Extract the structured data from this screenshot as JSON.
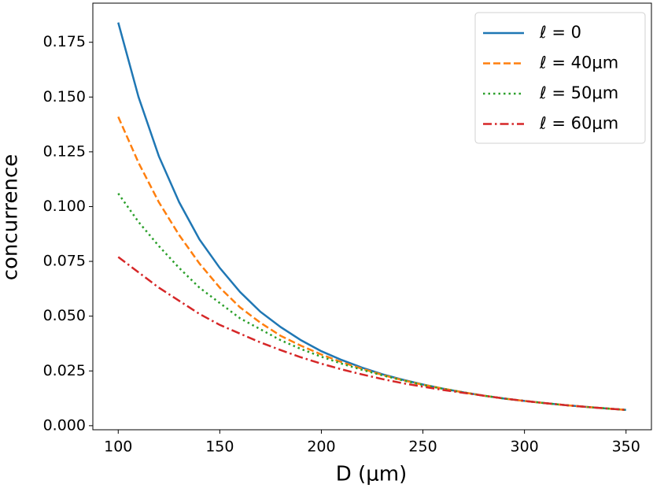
{
  "chart_data": {
    "type": "line",
    "xlabel": "D (μm)",
    "ylabel": "concurrence",
    "x": [
      100,
      110,
      120,
      130,
      140,
      150,
      160,
      170,
      180,
      190,
      200,
      210,
      220,
      230,
      240,
      250,
      260,
      270,
      280,
      290,
      300,
      310,
      320,
      330,
      340,
      350
    ],
    "series": [
      {
        "name": "ℓ = 0",
        "color": "#1f77b4",
        "dash": "solid",
        "values": [
          0.184,
          0.15,
          0.123,
          0.102,
          0.085,
          0.072,
          0.061,
          0.052,
          0.045,
          0.039,
          0.034,
          0.03,
          0.0265,
          0.0235,
          0.021,
          0.0188,
          0.0169,
          0.0152,
          0.0137,
          0.0124,
          0.0113,
          0.0103,
          0.0094,
          0.0086,
          0.0079,
          0.0072
        ]
      },
      {
        "name": "ℓ = 40μm",
        "color": "#ff7f0e",
        "dash": "dashed",
        "values": [
          0.141,
          0.12,
          0.102,
          0.087,
          0.074,
          0.063,
          0.054,
          0.047,
          0.041,
          0.0365,
          0.0325,
          0.029,
          0.026,
          0.0232,
          0.0208,
          0.0187,
          0.0169,
          0.0152,
          0.0137,
          0.0124,
          0.0113,
          0.0103,
          0.0094,
          0.0086,
          0.0079,
          0.0072
        ]
      },
      {
        "name": "ℓ = 50μm",
        "color": "#2ca02c",
        "dash": "dotted",
        "values": [
          0.106,
          0.093,
          0.082,
          0.072,
          0.063,
          0.056,
          0.049,
          0.044,
          0.039,
          0.035,
          0.0315,
          0.0283,
          0.0255,
          0.023,
          0.0207,
          0.0186,
          0.0168,
          0.0152,
          0.0137,
          0.0124,
          0.0113,
          0.0103,
          0.0094,
          0.0086,
          0.0079,
          0.0072
        ]
      },
      {
        "name": "ℓ = 60μm",
        "color": "#d62728",
        "dash": "dashdot",
        "values": [
          0.077,
          0.07,
          0.063,
          0.057,
          0.051,
          0.046,
          0.042,
          0.038,
          0.0345,
          0.0312,
          0.0283,
          0.0257,
          0.0234,
          0.0213,
          0.0194,
          0.0178,
          0.0163,
          0.015,
          0.0137,
          0.0124,
          0.0113,
          0.0103,
          0.0094,
          0.0086,
          0.0079,
          0.0072
        ]
      }
    ],
    "xlim": [
      87.5,
      362.5
    ],
    "xticks": [
      100,
      150,
      200,
      250,
      300,
      350
    ],
    "ylim": [
      -0.00185,
      0.19285
    ],
    "yticks": [
      {
        "value": 0,
        "label": "0.000"
      },
      {
        "value": 0.025,
        "label": "0.025"
      },
      {
        "value": 0.05,
        "label": "0.050"
      },
      {
        "value": 0.075,
        "label": "0.075"
      },
      {
        "value": 0.1,
        "label": "0.100"
      },
      {
        "value": 0.125,
        "label": "0.125"
      },
      {
        "value": 0.15,
        "label": "0.150"
      },
      {
        "value": 0.175,
        "label": "0.175"
      }
    ],
    "legend": "upper right",
    "grid": false
  }
}
